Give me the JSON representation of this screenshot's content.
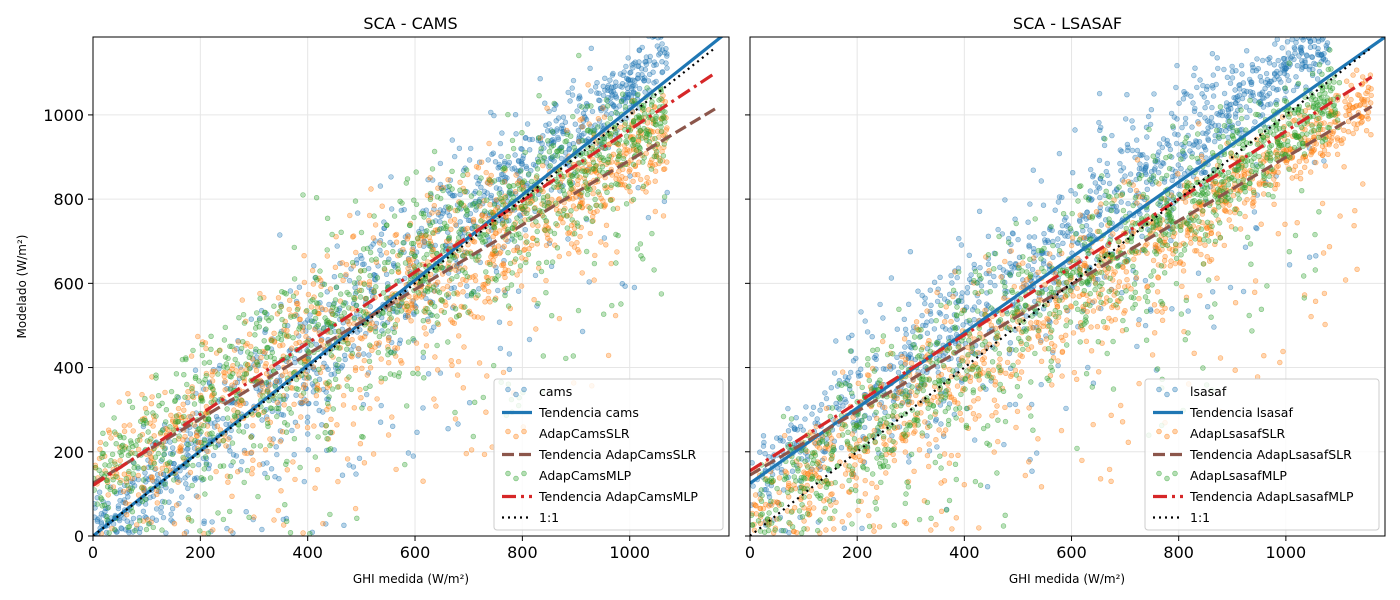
{
  "chart_data": [
    {
      "type": "scatter",
      "title": "SCA - CAMS",
      "xlabel": "GHI medida (W/m²)",
      "ylabel": "Modelado (W/m²)",
      "xlim": [
        0,
        1185
      ],
      "ylim": [
        0,
        1185
      ],
      "xticks": [
        0,
        200,
        400,
        600,
        800,
        1000
      ],
      "yticks": [
        0,
        200,
        400,
        600,
        800,
        1000
      ],
      "grid": true,
      "legend_position": "lower right",
      "scatter_series": [
        {
          "name": "cams",
          "color": "#1f77b4",
          "count": 1200,
          "slope": 1.07,
          "intercept": 0,
          "spread": 95,
          "xmin": 0,
          "xmax": 1070
        },
        {
          "name": "AdapCamsSLR",
          "color": "#ff7f0e",
          "count": 1200,
          "slope": 0.77,
          "intercept": 130,
          "spread": 110,
          "xmin": 0,
          "xmax": 1070
        },
        {
          "name": "AdapCamsMLP",
          "color": "#2ca02c",
          "count": 1200,
          "slope": 0.82,
          "intercept": 130,
          "spread": 115,
          "xmin": 0,
          "xmax": 1070
        }
      ],
      "lines": [
        {
          "name": "Tendencia cams",
          "color": "#1f77b4",
          "style": "solid",
          "x": [
            0,
            1185
          ],
          "y": [
            0,
            1200
          ]
        },
        {
          "name": "Tendencia AdapCamsSLR",
          "color": "#8c564b",
          "style": "dashed",
          "x": [
            0,
            1160
          ],
          "y": [
            125,
            1015
          ]
        },
        {
          "name": "Tendencia AdapCamsMLP",
          "color": "#d62728",
          "style": "dashdot",
          "x": [
            0,
            1160
          ],
          "y": [
            120,
            1100
          ]
        },
        {
          "name": "1:1",
          "color": "#000000",
          "style": "dotted",
          "x": [
            0,
            1160
          ],
          "y": [
            0,
            1160
          ]
        }
      ],
      "legend": [
        {
          "label": "cams",
          "kind": "marker",
          "color": "#1f77b4"
        },
        {
          "label": "Tendencia cams",
          "kind": "solid",
          "color": "#1f77b4"
        },
        {
          "label": "AdapCamsSLR",
          "kind": "marker",
          "color": "#ff7f0e"
        },
        {
          "label": "Tendencia AdapCamsSLR",
          "kind": "dashed",
          "color": "#8c564b"
        },
        {
          "label": "AdapCamsMLP",
          "kind": "marker",
          "color": "#2ca02c"
        },
        {
          "label": "Tendencia AdapCamsMLP",
          "kind": "dashdot",
          "color": "#d62728"
        },
        {
          "label": "1:1",
          "kind": "dotted",
          "color": "#000000"
        }
      ]
    },
    {
      "type": "scatter",
      "title": "SCA - LSASAF",
      "xlabel": "GHI medida (W/m²)",
      "ylabel": "",
      "xlim": [
        0,
        1185
      ],
      "ylim": [
        0,
        1185
      ],
      "xticks": [
        0,
        200,
        400,
        600,
        800,
        1000
      ],
      "yticks": [
        0,
        200,
        400,
        600,
        800,
        1000
      ],
      "grid": true,
      "legend_position": "lower right",
      "scatter_series": [
        {
          "name": "lsasaf",
          "color": "#1f77b4",
          "count": 1200,
          "slope": 0.98,
          "intercept": 125,
          "spread": 100,
          "xmin": 0,
          "xmax": 1080
        },
        {
          "name": "AdapLsasafSLR",
          "color": "#ff7f0e",
          "count": 1200,
          "slope": 0.85,
          "intercept": 45,
          "spread": 95,
          "xmin": 0,
          "xmax": 1160
        },
        {
          "name": "AdapLsasafMLP",
          "color": "#2ca02c",
          "count": 1200,
          "slope": 0.9,
          "intercept": 60,
          "spread": 100,
          "xmin": 0,
          "xmax": 1100
        }
      ],
      "lines": [
        {
          "name": "Tendencia lsasaf",
          "color": "#1f77b4",
          "style": "solid",
          "x": [
            0,
            1185
          ],
          "y": [
            125,
            1185
          ]
        },
        {
          "name": "Tendencia AdapLsasafSLR",
          "color": "#8c564b",
          "style": "dashed",
          "x": [
            0,
            1160
          ],
          "y": [
            145,
            1020
          ]
        },
        {
          "name": "Tendencia AdapLsasafMLP",
          "color": "#d62728",
          "style": "dashdot",
          "x": [
            0,
            1160
          ],
          "y": [
            155,
            1090
          ]
        },
        {
          "name": "1:1",
          "color": "#000000",
          "style": "dotted",
          "x": [
            0,
            1160
          ],
          "y": [
            0,
            1160
          ]
        }
      ],
      "legend": [
        {
          "label": "lsasaf",
          "kind": "marker",
          "color": "#1f77b4"
        },
        {
          "label": "Tendencia lsasaf",
          "kind": "solid",
          "color": "#1f77b4"
        },
        {
          "label": "AdapLsasafSLR",
          "kind": "marker",
          "color": "#ff7f0e"
        },
        {
          "label": "Tendencia AdapLsasafSLR",
          "kind": "dashed",
          "color": "#8c564b"
        },
        {
          "label": "AdapLsasafMLP",
          "kind": "marker",
          "color": "#2ca02c"
        },
        {
          "label": "Tendencia AdapLsasafMLP",
          "kind": "dashdot",
          "color": "#d62728"
        },
        {
          "label": "1:1",
          "kind": "dotted",
          "color": "#000000"
        }
      ]
    }
  ]
}
